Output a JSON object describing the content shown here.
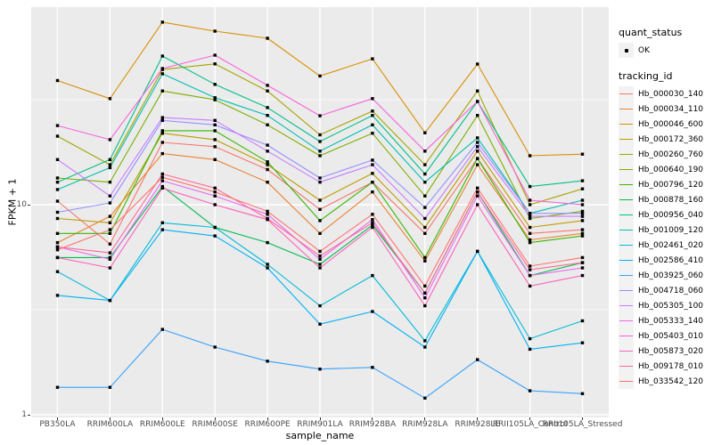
{
  "figure": {
    "panel_bg": "#EBEBEB",
    "grid_color": "#FFFFFF",
    "point_color": "#000000",
    "tick_text_color": "#4D4D4D"
  },
  "legend": {
    "quant_status": {
      "title": "quant_status",
      "value": "OK",
      "glyph": "small-black-point"
    },
    "tracking_id": {
      "title": "tracking_id"
    }
  },
  "chart_data": {
    "type": "line",
    "title": "",
    "xlabel": "sample_name",
    "ylabel": "FPKM + 1",
    "y_scale": "log10",
    "ylim": [
      0.97,
      87
    ],
    "y_major_gridlines": [
      1,
      10
    ],
    "y_minor_gridlines": [
      3.1623,
      31.623
    ],
    "y_tick_labels": [
      "1",
      "10"
    ],
    "grid": "on",
    "legend_position": "right",
    "marker": "small-black-square",
    "x_categories": [
      "PB350LA",
      "RRIM600LA",
      "RRIM600LE",
      "RRIM600SE",
      "RRIM600PE",
      "RRIM901LA",
      "RRIM928BA",
      "RRIM928LA",
      "RRIM928LE",
      "RRII105LA_Control",
      "RRII105LA_Stressed"
    ],
    "series": [
      {
        "name": "Hb_000030_140",
        "color": "#F8766D",
        "values": [
          10.4,
          6.5,
          19.8,
          18.9,
          14.7,
          9.5,
          12.8,
          7.3,
          16.6,
          7.3,
          7.6
        ]
      },
      {
        "name": "Hb_000034_110",
        "color": "#EA8331",
        "values": [
          6.6,
          8.8,
          17.5,
          16.4,
          12.8,
          7.3,
          11.5,
          5.4,
          15.5,
          6.8,
          7.3
        ]
      },
      {
        "name": "Hb_000046_600",
        "color": "#D89000",
        "values": [
          39,
          32,
          74,
          67,
          62,
          41,
          49.5,
          22,
          46.7,
          17.1,
          17.4
        ]
      },
      {
        "name": "Hb_000172_360",
        "color": "#C09B00",
        "values": [
          8.6,
          8.2,
          21.9,
          20.4,
          15.5,
          10.5,
          14.1,
          7.8,
          18.0,
          7.8,
          8.4
        ]
      },
      {
        "name": "Hb_000260_760",
        "color": "#A3A500",
        "values": [
          21.2,
          15.5,
          44,
          46.8,
          34.8,
          21.5,
          27.9,
          15.5,
          34.8,
          10.0,
          11.9
        ]
      },
      {
        "name": "Hb_000640_190",
        "color": "#7CAE00",
        "values": [
          13.4,
          12.8,
          34.8,
          31.6,
          24,
          17.1,
          21.9,
          11.0,
          26.6,
          8.6,
          9.3
        ]
      },
      {
        "name": "Hb_000796_120",
        "color": "#39B600",
        "values": [
          7.3,
          7.3,
          22.5,
          22.5,
          16.0,
          8.4,
          12.8,
          5.6,
          16.6,
          6.6,
          7.1
        ]
      },
      {
        "name": "Hb_000878_160",
        "color": "#00BB4E",
        "values": [
          5.6,
          5.6,
          12.2,
          7.8,
          6.6,
          5.2,
          8.0,
          3.8,
          11.5,
          4.6,
          5.3
        ]
      },
      {
        "name": "Hb_000956_040",
        "color": "#00C087",
        "values": [
          12.8,
          16.4,
          51,
          37.4,
          29,
          20,
          26.6,
          14,
          31,
          12.2,
          13.0
        ]
      },
      {
        "name": "Hb_001009_120",
        "color": "#00C0AF",
        "values": [
          11.8,
          15.0,
          42,
          32.3,
          26.6,
          18,
          24,
          12.8,
          20.8,
          9.1,
          10.5
        ]
      },
      {
        "name": "Hb_002461_020",
        "color": "#00BCD8",
        "values": [
          4.8,
          3.5,
          8.2,
          7.8,
          5.2,
          3.3,
          4.6,
          2.25,
          6.0,
          2.3,
          2.8
        ]
      },
      {
        "name": "Hb_002586_410",
        "color": "#00B0F6",
        "values": [
          3.7,
          3.5,
          7.6,
          7.1,
          5.0,
          2.7,
          3.1,
          2.1,
          6.0,
          2.05,
          2.2
        ]
      },
      {
        "name": "Hb_003925_060",
        "color": "#35A2FF",
        "values": [
          1.35,
          1.35,
          2.55,
          2.1,
          1.8,
          1.65,
          1.68,
          1.2,
          1.83,
          1.3,
          1.26
        ]
      },
      {
        "name": "Hb_004718_060",
        "color": "#9590FF",
        "values": [
          9.2,
          10.2,
          25.2,
          24,
          19.2,
          13.4,
          16.3,
          9.7,
          19.8,
          9.1,
          9.1
        ]
      },
      {
        "name": "Hb_005305_100",
        "color": "#C77CFF",
        "values": [
          16.4,
          11.0,
          26,
          25.2,
          18,
          12.8,
          15.5,
          8.6,
          18.9,
          8.8,
          8.8
        ]
      },
      {
        "name": "Hb_005333_140",
        "color": "#E76BF3",
        "values": [
          6.3,
          5.5,
          13.0,
          11.0,
          9.0,
          5.5,
          8.5,
          3.6,
          11.0,
          4.6,
          5.0
        ]
      },
      {
        "name": "Hb_005403_010",
        "color": "#FA62DB",
        "values": [
          23.8,
          20.4,
          44.5,
          51.5,
          37,
          26.5,
          32,
          18,
          31,
          10.5,
          10.0
        ]
      },
      {
        "name": "Hb_005873_020",
        "color": "#FF62BC",
        "values": [
          5.6,
          5.0,
          12.0,
          10.0,
          8.5,
          5.0,
          7.8,
          3.3,
          10.0,
          4.1,
          4.6
        ]
      },
      {
        "name": "Hb_009178_010",
        "color": "#FF6A98",
        "values": [
          6.3,
          5.9,
          14.0,
          12.0,
          8.6,
          5.7,
          8.2,
          3.8,
          11.5,
          4.9,
          5.3
        ]
      },
      {
        "name": "Hb_033542_120",
        "color": "#FF7370",
        "values": [
          6.1,
          7.6,
          13.5,
          11.5,
          9.3,
          6.0,
          9.0,
          4.1,
          12.0,
          5.1,
          5.6
        ]
      }
    ]
  }
}
